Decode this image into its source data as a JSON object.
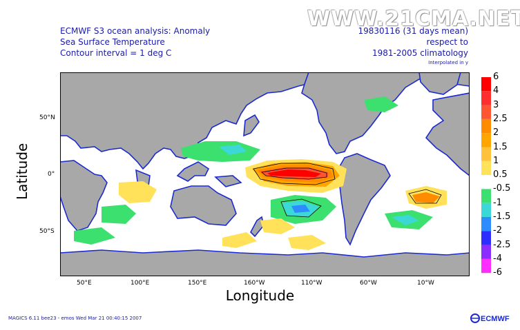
{
  "watermark": "WWW.21CMA.NET",
  "title": {
    "line1": "ECMWF S3 ocean analysis: Anomaly",
    "line2": "Sea Surface Temperature",
    "line3": "Contour interval = 1 deg C"
  },
  "period": {
    "line1": "19830116 (31 days mean)",
    "line2": "respect to",
    "line3": "1981-2005 climatology",
    "note": "Interpolated in y"
  },
  "axes": {
    "xlabel": "Longitude",
    "ylabel": "Latitude",
    "xticks": [
      "50°E",
      "100°E",
      "150°E",
      "160°W",
      "110°W",
      "60°W",
      "10°W"
    ],
    "yticks": [
      "50°N",
      "0°",
      "50°S"
    ]
  },
  "colorbar": {
    "labels": [
      "6",
      "4",
      "3",
      "2.5",
      "2",
      "1.5",
      "1",
      "0.5",
      "-0.5",
      "-1",
      "-1.5",
      "-2",
      "-2.5",
      "-4",
      "-6"
    ],
    "colors": {
      "6": "#ff0000",
      "4": "#ff2d2d",
      "3": "#ff5533",
      "2.5": "#ff8c00",
      "2": "#ffa500",
      "1.5": "#ffc23a",
      "1": "#ffe15a",
      "-1": "#3ce06e",
      "-1.5": "#3cd7d7",
      "-2": "#2d8cff",
      "-2.5": "#2d2dff",
      "-4": "#8b2dff",
      "-6": "#ff2dff"
    },
    "neutral": "#ffffff"
  },
  "land_color": "#a8a8a8",
  "coast_color": "#1a2ad0",
  "footer": "MAGICS 6.11 bee23 - emos Wed Mar 21 00:40:15 2007",
  "logo": "ECMWF"
}
